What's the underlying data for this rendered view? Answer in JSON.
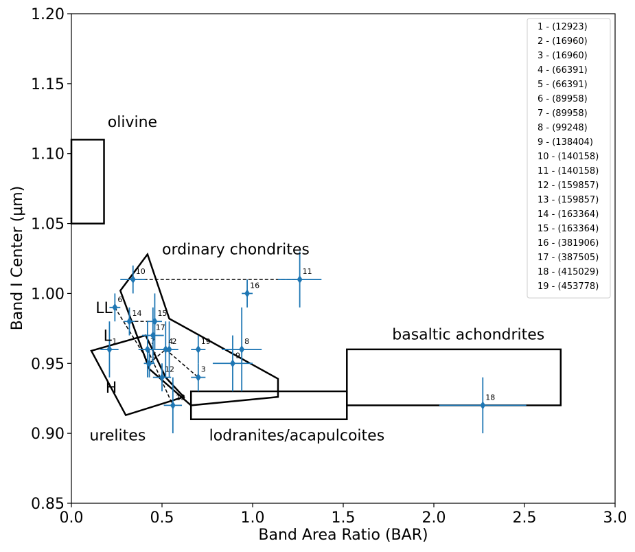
{
  "chart_data": {
    "type": "scatter",
    "xlabel": "Band Area Ratio (BAR)",
    "ylabel": "Band I Center (μm)",
    "xlim": [
      0.0,
      3.0
    ],
    "ylim": [
      0.85,
      1.2
    ],
    "xticks": [
      "0.0",
      "0.5",
      "1.0",
      "1.5",
      "2.0",
      "2.5",
      "3.0"
    ],
    "yticks": [
      "0.85",
      "0.90",
      "0.95",
      "1.00",
      "1.05",
      "1.10",
      "1.15",
      "1.20"
    ],
    "legend_position": "top-right",
    "point_color": "#1f77b4",
    "points": [
      {
        "id": "1",
        "x": 0.21,
        "y": 0.96,
        "xerr": 0.05,
        "yerr": 0.02
      },
      {
        "id": "2",
        "x": 0.54,
        "y": 0.96,
        "xerr": 0.05,
        "yerr": 0.02
      },
      {
        "id": "3",
        "x": 0.7,
        "y": 0.94,
        "xerr": 0.04,
        "yerr": 0.01
      },
      {
        "id": "4",
        "x": 0.52,
        "y": 0.96,
        "xerr": 0.05,
        "yerr": 0.02
      },
      {
        "id": "5",
        "x": 0.43,
        "y": 0.95,
        "xerr": 0.03,
        "yerr": 0.01
      },
      {
        "id": "6",
        "x": 0.24,
        "y": 0.99,
        "xerr": 0.03,
        "yerr": 0.01
      },
      {
        "id": "7",
        "x": 0.42,
        "y": 0.96,
        "xerr": 0.05,
        "yerr": 0.02
      },
      {
        "id": "8",
        "x": 0.94,
        "y": 0.96,
        "xerr": 0.11,
        "yerr": 0.03
      },
      {
        "id": "9",
        "x": 0.89,
        "y": 0.95,
        "xerr": 0.11,
        "yerr": 0.02
      },
      {
        "id": "10",
        "x": 0.34,
        "y": 1.01,
        "xerr": 0.07,
        "yerr": 0.01
      },
      {
        "id": "11",
        "x": 1.26,
        "y": 1.01,
        "xerr": 0.12,
        "yerr": 0.02
      },
      {
        "id": "12",
        "x": 0.5,
        "y": 0.94,
        "xerr": 0.05,
        "yerr": 0.01
      },
      {
        "id": "13",
        "x": 0.56,
        "y": 0.92,
        "xerr": 0.05,
        "yerr": 0.02
      },
      {
        "id": "14",
        "x": 0.32,
        "y": 0.98,
        "xerr": 0.03,
        "yerr": 0.01
      },
      {
        "id": "15",
        "x": 0.46,
        "y": 0.98,
        "xerr": 0.04,
        "yerr": 0.02
      },
      {
        "id": "16",
        "x": 0.97,
        "y": 1.0,
        "xerr": 0.03,
        "yerr": 0.01
      },
      {
        "id": "17",
        "x": 0.45,
        "y": 0.97,
        "xerr": 0.06,
        "yerr": 0.02
      },
      {
        "id": "18",
        "x": 2.27,
        "y": 0.92,
        "xerr": 0.24,
        "yerr": 0.02
      },
      {
        "id": "19",
        "x": 0.7,
        "y": 0.96,
        "xerr": 0.04,
        "yerr": 0.01
      }
    ],
    "legend": [
      "1 - (12923)",
      "2 - (16960)",
      "3 - (16960)",
      "4 - (66391)",
      "5 - (66391)",
      "6 - (89958)",
      "7 - (89958)",
      "8 - (99248)",
      "9 - (138404)",
      "10 - (140158)",
      "11 - (140158)",
      "12 - (159857)",
      "13 - (159857)",
      "14 - (163364)",
      "15 - (163364)",
      "16 - (381906)",
      "17 - (387505)",
      "18 - (415029)",
      "19 - (453778)"
    ],
    "connections": [
      [
        "10",
        "11"
      ],
      [
        "14",
        "15"
      ],
      [
        "6",
        "5"
      ],
      [
        "5",
        "4"
      ],
      [
        "4",
        "3"
      ],
      [
        "7",
        "13"
      ]
    ],
    "regions": [
      {
        "label": "olivine",
        "points": [
          [
            0.0,
            1.11
          ],
          [
            0.18,
            1.11
          ],
          [
            0.18,
            1.05
          ],
          [
            0.0,
            1.05
          ]
        ]
      },
      {
        "label": "ordinary chondrites",
        "points": [
          [
            0.27,
            1.002
          ],
          [
            0.42,
            1.028
          ],
          [
            0.54,
            0.982
          ],
          [
            1.14,
            0.939
          ],
          [
            1.14,
            0.926
          ],
          [
            0.66,
            0.92
          ],
          [
            0.43,
            0.946
          ],
          [
            0.27,
            1.002
          ]
        ]
      },
      {
        "label": "urelites",
        "points": [
          [
            0.11,
            0.959
          ],
          [
            0.41,
            0.97
          ],
          [
            0.52,
            0.94
          ],
          [
            0.62,
            0.926
          ],
          [
            0.3,
            0.913
          ],
          [
            0.11,
            0.959
          ]
        ]
      },
      {
        "label": "lodranites/acapulcoites",
        "points": [
          [
            0.66,
            0.93
          ],
          [
            1.52,
            0.93
          ],
          [
            1.52,
            0.91
          ],
          [
            0.66,
            0.91
          ]
        ]
      },
      {
        "label": "basaltic achondrites",
        "points": [
          [
            1.52,
            0.96
          ],
          [
            2.7,
            0.96
          ],
          [
            2.7,
            0.92
          ],
          [
            1.52,
            0.92
          ]
        ]
      }
    ],
    "region_labels": [
      {
        "text": "olivine",
        "x": 0.2,
        "y": 1.119
      },
      {
        "text": "ordinary chondrites",
        "x": 0.5,
        "y": 1.028
      },
      {
        "text": "urelites",
        "x": 0.1,
        "y": 0.895
      },
      {
        "text": "lodranites/acapulcoites",
        "x": 0.76,
        "y": 0.895
      },
      {
        "text": "basaltic achondrites",
        "x": 1.77,
        "y": 0.967
      }
    ],
    "subregion_labels": [
      {
        "text": "LL",
        "x": 0.18,
        "y": 0.986
      },
      {
        "text": "L",
        "x": 0.2,
        "y": 0.966
      },
      {
        "text": "H",
        "x": 0.22,
        "y": 0.929
      }
    ]
  }
}
